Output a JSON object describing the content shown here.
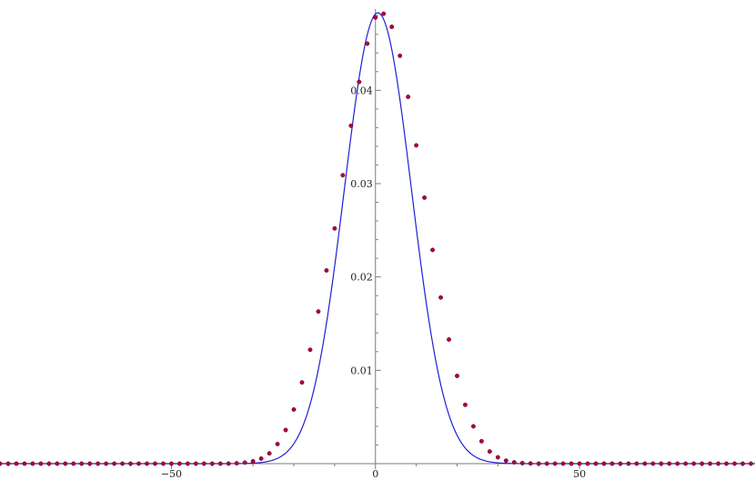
{
  "chart_data": {
    "type": "line",
    "title": "",
    "xlabel": "",
    "ylabel": "",
    "xlim": [
      -92,
      93
    ],
    "ylim": [
      0,
      0.0487
    ],
    "grid": false,
    "legend": "none",
    "x_ticks": [
      {
        "value": -50,
        "label": "−50"
      },
      {
        "value": 0,
        "label": "0"
      },
      {
        "value": 50,
        "label": "50"
      }
    ],
    "y_ticks": [
      {
        "value": 0.01,
        "label": "0.01"
      },
      {
        "value": 0.02,
        "label": "0.02"
      },
      {
        "value": 0.03,
        "label": "0.03"
      },
      {
        "value": 0.04,
        "label": "0.04"
      }
    ],
    "series": [
      {
        "type": "line",
        "color": "#1f1fd6",
        "description_values": {
          "x": [
            -92,
            -90,
            -80,
            -70,
            -60,
            -50,
            -40,
            -35,
            -30,
            -27,
            -24,
            -21,
            -18,
            -15,
            -12,
            -9,
            -6,
            -3,
            0,
            1,
            3,
            6,
            9,
            12,
            15,
            18,
            21,
            24,
            27,
            30,
            35,
            40,
            50,
            60,
            70,
            80,
            90,
            93
          ],
          "y": [
            0,
            0,
            0,
            0,
            0,
            0,
            0,
            2e-05,
            0.00018,
            0.00057,
            0.0016,
            0.0038,
            0.0078,
            0.0136,
            0.0209,
            0.0288,
            0.0369,
            0.0438,
            0.0479,
            0.0483,
            0.0473,
            0.0443,
            0.0383,
            0.0307,
            0.0228,
            0.0153,
            0.0091,
            0.0047,
            0.0021,
            0.0008,
            8e-05,
            0,
            0,
            0,
            0,
            0,
            0,
            0
          ]
        }
      },
      {
        "type": "scatter",
        "color": "#b0003a",
        "marker": "dot",
        "x": [
          -92,
          -90,
          -88,
          -86,
          -84,
          -82,
          -80,
          -78,
          -76,
          -74,
          -72,
          -70,
          -68,
          -66,
          -64,
          -62,
          -60,
          -58,
          -56,
          -54,
          -52,
          -50,
          -48,
          -46,
          -44,
          -42,
          -40,
          -38,
          -36,
          -34,
          -32,
          -30,
          -28,
          -26,
          -24,
          -22,
          -20,
          -18,
          -16,
          -14,
          -12,
          -10,
          -8,
          -6,
          -4,
          -2,
          0,
          2,
          4,
          6,
          8,
          10,
          12,
          14,
          16,
          18,
          20,
          22,
          24,
          26,
          28,
          30,
          32,
          34,
          36,
          38,
          40,
          42,
          44,
          46,
          48,
          50,
          52,
          54,
          56,
          58,
          60,
          62,
          64,
          66,
          68,
          70,
          72,
          74,
          76,
          78,
          80,
          82,
          84,
          86,
          88,
          90,
          92
        ],
        "y": [
          0,
          0,
          0,
          0,
          0,
          0,
          0,
          0,
          0,
          0,
          0,
          0,
          0,
          0,
          0,
          0,
          0,
          0,
          0,
          0,
          0,
          0,
          0,
          0,
          0,
          0,
          0,
          0,
          1e-05,
          4e-05,
          0.00011,
          0.00025,
          0.00054,
          0.0011,
          0.0021,
          0.0036,
          0.0058,
          0.0087,
          0.0122,
          0.0163,
          0.0207,
          0.0252,
          0.0309,
          0.0362,
          0.0409,
          0.045,
          0.0478,
          0.0482,
          0.0468,
          0.0437,
          0.0393,
          0.0341,
          0.0285,
          0.0229,
          0.0178,
          0.0133,
          0.0094,
          0.0063,
          0.004,
          0.0024,
          0.0013,
          0.00068,
          0.00032,
          0.00014,
          5e-05,
          2e-05,
          0,
          0,
          0,
          0,
          0,
          0,
          0,
          0,
          0,
          0,
          0,
          0,
          0,
          0,
          0,
          0,
          0,
          0,
          0,
          0,
          0,
          0,
          0,
          0,
          0,
          0,
          0
        ]
      }
    ]
  }
}
